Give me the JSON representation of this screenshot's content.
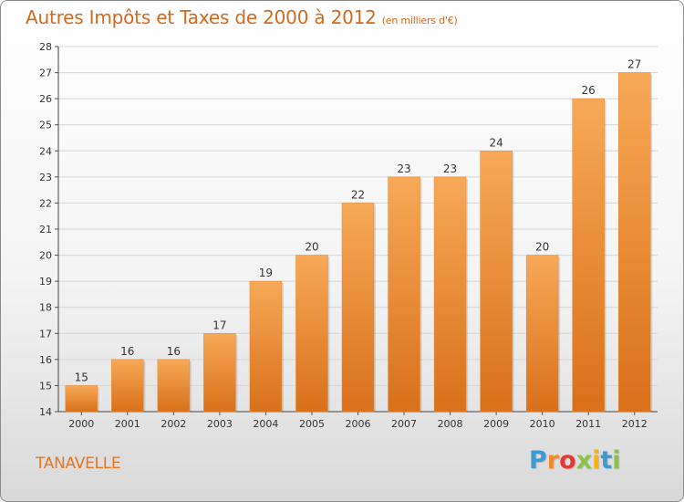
{
  "header": {
    "title": "Autres Impôts et Taxes de 2000 à 2012",
    "unit": "(en milliers d'€)"
  },
  "footer": {
    "city": "TANAVELLE",
    "brand_letters": [
      "P",
      "r",
      "o",
      "x",
      "i",
      "t",
      "i"
    ],
    "brand_colors": [
      "#3a9bd5",
      "#f28c28",
      "#e53935",
      "#8bc34a",
      "#ffb300",
      "#3a9bd5",
      "#8bc34a"
    ]
  },
  "colors": {
    "bar_light": "#f7a957",
    "bar_dark": "#d9701a",
    "title": "#d2691e"
  },
  "chart_data": {
    "type": "bar",
    "title": "Autres Impôts et Taxes de 2000 à 2012",
    "subtitle": "(en milliers d'€)",
    "categories": [
      "2000",
      "2001",
      "2002",
      "2003",
      "2004",
      "2005",
      "2006",
      "2007",
      "2008",
      "2009",
      "2010",
      "2011",
      "2012"
    ],
    "values": [
      15,
      16,
      16,
      17,
      19,
      20,
      22,
      23,
      23,
      24,
      20,
      26,
      27
    ],
    "ylim": [
      14,
      28
    ],
    "yticks": [
      14,
      15,
      16,
      17,
      18,
      19,
      20,
      21,
      22,
      23,
      24,
      25,
      26,
      27,
      28
    ],
    "grid": true,
    "xlabel": "",
    "ylabel": ""
  }
}
